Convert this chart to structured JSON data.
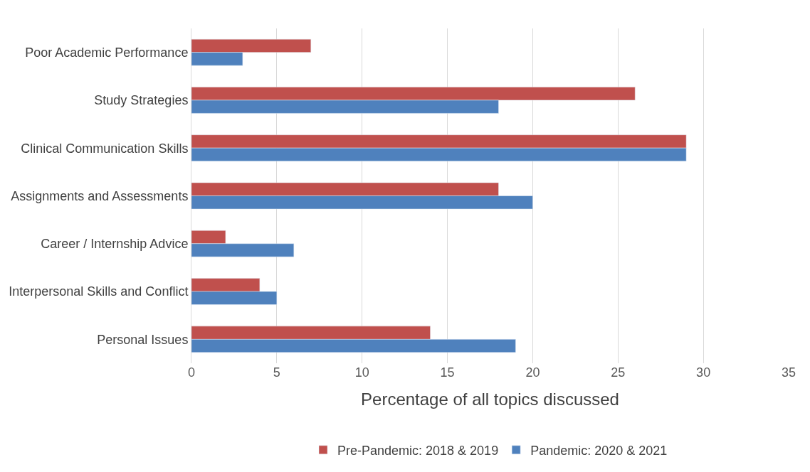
{
  "chart_data": {
    "type": "bar",
    "orientation": "horizontal",
    "xlabel": "Percentage of all topics discussed",
    "categories": [
      "Poor Academic Performance",
      "Study Strategies",
      "Clinical Communication Skills",
      "Assignments and Assessments",
      "Career / Internship Advice",
      "Interpersonal Skills and Conflict",
      "Personal Issues"
    ],
    "series": [
      {
        "name": "Pre-Pandemic: 2018 & 2019",
        "color": "#c0504d",
        "values": [
          7,
          26,
          29,
          18,
          2,
          4,
          14
        ]
      },
      {
        "name": "Pandemic: 2020 & 2021",
        "color": "#4f81bd",
        "values": [
          3,
          18,
          29,
          20,
          6,
          5,
          19
        ]
      }
    ],
    "xlim": [
      0,
      35
    ],
    "xticks": [
      0,
      5,
      10,
      15,
      20,
      25,
      30,
      35
    ],
    "grid": "x",
    "legend": "bottom"
  }
}
